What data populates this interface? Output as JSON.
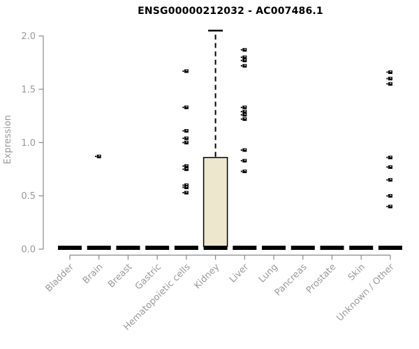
{
  "chart_data": {
    "type": "box",
    "title": "ENSG00000212032 - AC007486.1",
    "xlabel": "",
    "ylabel": "Expression",
    "ylim": [
      0.0,
      2.07
    ],
    "grid": false,
    "legend": "none",
    "yticks": [
      "0.0",
      "0.5",
      "1.0",
      "1.5",
      "2.0"
    ],
    "ytick_values": [
      0.0,
      0.5,
      1.0,
      1.5,
      2.0
    ],
    "axis_color": "#888888",
    "label_color": "#999999",
    "box_fill": "#ECE7CD",
    "box_stroke": "#000000",
    "point_color": "#000000",
    "categories": [
      "Bladder",
      "Brain",
      "Breast",
      "Gastric",
      "Hematopoietic cells",
      "Kidney",
      "Liver",
      "Lung",
      "Pancreas",
      "Prostate",
      "Skin",
      "Unknown / Other"
    ],
    "boxes": [
      {
        "category": "Bladder",
        "q1": 0.0,
        "median": 0.0,
        "q3": 0.0,
        "whisker_low": 0.0,
        "whisker_high": 0.0,
        "outliers": []
      },
      {
        "category": "Brain",
        "q1": 0.0,
        "median": 0.0,
        "q3": 0.0,
        "whisker_low": 0.0,
        "whisker_high": 0.0,
        "outliers": [
          0.87
        ]
      },
      {
        "category": "Breast",
        "q1": 0.0,
        "median": 0.0,
        "q3": 0.0,
        "whisker_low": 0.0,
        "whisker_high": 0.0,
        "outliers": []
      },
      {
        "category": "Gastric",
        "q1": 0.0,
        "median": 0.0,
        "q3": 0.0,
        "whisker_low": 0.0,
        "whisker_high": 0.0,
        "outliers": []
      },
      {
        "category": "Hematopoietic cells",
        "q1": 0.0,
        "median": 0.0,
        "q3": 0.0,
        "whisker_low": 0.0,
        "whisker_high": 0.0,
        "outliers": [
          1.67,
          1.33,
          1.11,
          1.04,
          1.0,
          0.78,
          0.75,
          0.6,
          0.58,
          0.53
        ]
      },
      {
        "category": "Kidney",
        "q1": 0.0,
        "median": 0.0,
        "q3": 0.86,
        "whisker_low": 0.0,
        "whisker_high": 2.05,
        "outliers": []
      },
      {
        "category": "Liver",
        "q1": 0.0,
        "median": 0.0,
        "q3": 0.0,
        "whisker_low": 0.0,
        "whisker_high": 0.0,
        "outliers": [
          1.87,
          1.8,
          1.77,
          1.72,
          1.33,
          1.29,
          1.26,
          1.22,
          0.93,
          0.83,
          0.73
        ]
      },
      {
        "category": "Lung",
        "q1": 0.0,
        "median": 0.0,
        "q3": 0.0,
        "whisker_low": 0.0,
        "whisker_high": 0.0,
        "outliers": []
      },
      {
        "category": "Pancreas",
        "q1": 0.0,
        "median": 0.0,
        "q3": 0.0,
        "whisker_low": 0.0,
        "whisker_high": 0.0,
        "outliers": []
      },
      {
        "category": "Prostate",
        "q1": 0.0,
        "median": 0.0,
        "q3": 0.0,
        "whisker_low": 0.0,
        "whisker_high": 0.0,
        "outliers": []
      },
      {
        "category": "Skin",
        "q1": 0.0,
        "median": 0.0,
        "q3": 0.0,
        "whisker_low": 0.0,
        "whisker_high": 0.0,
        "outliers": []
      },
      {
        "category": "Unknown / Other",
        "q1": 0.0,
        "median": 0.0,
        "q3": 0.0,
        "whisker_low": 0.0,
        "whisker_high": 0.0,
        "outliers": [
          1.66,
          1.6,
          1.55,
          0.86,
          0.77,
          0.65,
          0.5,
          0.4
        ]
      }
    ]
  }
}
